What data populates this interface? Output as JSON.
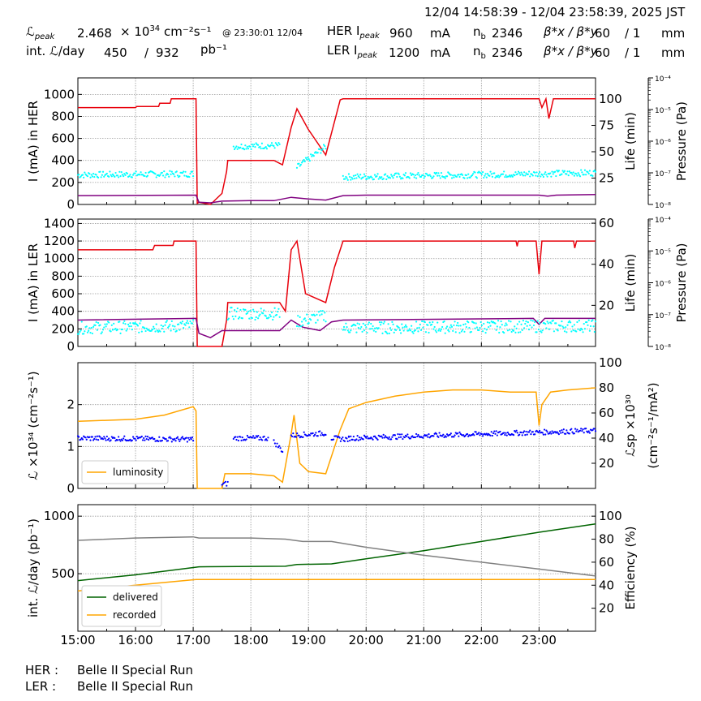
{
  "header": {
    "date_range": "12/04 14:58:39 - 12/04 23:58:39, 2025 JST",
    "lpeak_label": "ℒ",
    "lpeak_sub": "peak",
    "lpeak_value": "2.468",
    "lpeak_exp_label": "× 10",
    "lpeak_exp": "34",
    "lpeak_unit": "cm⁻²s⁻¹",
    "lpeak_time": "@ 23:30:01 12/04",
    "intl_label": "int. ℒ/day",
    "intl_recorded": "450",
    "intl_sep": "/",
    "intl_delivered": "932",
    "intl_unit": "pb⁻¹",
    "her_label": "HER I",
    "her_sub": "peak",
    "her_value": "960",
    "her_unit": "mA",
    "her_nb_label": "n",
    "her_nb_sub": "b",
    "her_nb": "2346",
    "beta_label": "β*x / β*y",
    "her_betax": "60",
    "her_betay": "/ 1",
    "beta_unit": "mm",
    "ler_label": "LER I",
    "ler_sub": "peak",
    "ler_value": "1200",
    "ler_unit": "mA",
    "ler_nb_label": "n",
    "ler_nb_sub": "b",
    "ler_nb": "2346",
    "ler_betax": "60",
    "ler_betay": "/ 1"
  },
  "footer": {
    "her_label": "HER :",
    "her_value": "Belle II Special Run",
    "ler_label": "LER :",
    "ler_value": "Belle II Special Run"
  },
  "colors": {
    "current": "#e8000b",
    "life": "#00ffff",
    "pressure": "#800080",
    "luminosity": "#ffa500",
    "specific": "#0000ff",
    "delivered": "#006400",
    "recorded": "#ffa500",
    "efficiency": "#808080"
  },
  "chart_data": [
    {
      "type": "line",
      "ylabel": "I (mA) in HER",
      "ylim": [
        0,
        1150
      ],
      "yticks": [
        0,
        200,
        400,
        600,
        800,
        1000
      ],
      "right_label": "Life (min)",
      "right_lim": [
        0,
        120
      ],
      "right_ticks": [
        25,
        50,
        75,
        100
      ],
      "pressure_label": "Pressure (Pa)",
      "pressure_ticks": [
        "10⁻⁸",
        "10⁻⁷",
        "10⁻⁶",
        "10⁻⁵",
        "10⁻⁴"
      ],
      "xlim": [
        15.0,
        23.98
      ],
      "series": [
        {
          "key": "current",
          "x": [
            15.0,
            16.0,
            16.02,
            16.4,
            16.42,
            16.6,
            16.62,
            17.05,
            17.07,
            17.1,
            17.3,
            17.5,
            17.58,
            17.6,
            18.4,
            18.55,
            18.7,
            18.8,
            19.0,
            19.3,
            19.55,
            19.6,
            23.0,
            23.05,
            23.12,
            23.17,
            23.25,
            23.3,
            23.98
          ],
          "y": [
            880,
            880,
            890,
            890,
            920,
            920,
            960,
            960,
            10,
            20,
            0,
            100,
            300,
            400,
            400,
            360,
            700,
            870,
            680,
            450,
            950,
            960,
            960,
            880,
            960,
            780,
            960,
            960,
            960
          ]
        },
        {
          "key": "pressure",
          "x": [
            15.0,
            17.05,
            17.1,
            17.3,
            17.5,
            18.0,
            18.4,
            18.7,
            19.0,
            19.3,
            19.6,
            20.0,
            23.0,
            23.15,
            23.3,
            23.98
          ],
          "y": [
            80,
            85,
            20,
            15,
            30,
            35,
            35,
            65,
            50,
            40,
            80,
            85,
            85,
            75,
            85,
            90
          ]
        },
        {
          "key": "life",
          "type": "scatter",
          "segments": [
            {
              "x": [
                15.0,
                17.0
              ],
              "y": [
                28,
                29
              ]
            },
            {
              "x": [
                17.7,
                18.5
              ],
              "y": [
                55,
                56
              ]
            },
            {
              "x": [
                18.8,
                19.3
              ],
              "y": [
                35,
                55
              ]
            },
            {
              "x": [
                19.6,
                23.98
              ],
              "y": [
                26,
                30
              ]
            }
          ]
        }
      ]
    },
    {
      "type": "line",
      "ylabel": "I (mA) in LER",
      "ylim": [
        0,
        1450
      ],
      "yticks": [
        0,
        200,
        400,
        600,
        800,
        1000,
        1200,
        1400
      ],
      "right_label": "Life (min)",
      "right_lim": [
        0,
        62
      ],
      "right_ticks": [
        20,
        40,
        60
      ],
      "pressure_label": "Pressure (Pa)",
      "pressure_ticks": [
        "10⁻⁸",
        "10⁻⁷",
        "10⁻⁶",
        "10⁻⁵",
        "10⁻⁴"
      ],
      "xlim": [
        15.0,
        23.98
      ],
      "series": [
        {
          "key": "current",
          "x": [
            15.0,
            16.3,
            16.33,
            16.65,
            16.67,
            17.05,
            17.07,
            17.1,
            17.5,
            17.58,
            17.6,
            18.5,
            18.6,
            18.7,
            18.8,
            18.95,
            19.3,
            19.45,
            19.6,
            22.6,
            22.62,
            22.64,
            22.95,
            23.0,
            23.05,
            23.6,
            23.62,
            23.65,
            23.98
          ],
          "y": [
            1100,
            1100,
            1150,
            1150,
            1200,
            1200,
            0,
            0,
            0,
            300,
            500,
            500,
            400,
            1100,
            1200,
            600,
            500,
            900,
            1200,
            1200,
            1140,
            1200,
            1200,
            820,
            1200,
            1200,
            1120,
            1200,
            1200
          ]
        },
        {
          "key": "pressure",
          "x": [
            15.0,
            17.05,
            17.1,
            17.3,
            17.5,
            18.0,
            18.5,
            18.7,
            18.9,
            19.2,
            19.4,
            19.6,
            22.9,
            23.0,
            23.1,
            23.98
          ],
          "y": [
            300,
            320,
            150,
            100,
            180,
            180,
            180,
            300,
            220,
            180,
            280,
            300,
            320,
            250,
            320,
            320
          ]
        },
        {
          "key": "life",
          "type": "scatter",
          "segments": [
            {
              "x": [
                15.0,
                17.0
              ],
              "y": [
                9,
                10
              ]
            },
            {
              "x": [
                17.6,
                18.5
              ],
              "y": [
                16,
                16
              ]
            },
            {
              "x": [
                18.8,
                19.3
              ],
              "y": [
                12,
                15
              ]
            },
            {
              "x": [
                19.6,
                23.98
              ],
              "y": [
                9,
                10
              ]
            }
          ]
        }
      ]
    },
    {
      "type": "line",
      "ylabel": "ℒ ×10³⁴ (cm⁻²s⁻¹)",
      "ylim": [
        0,
        3.0
      ],
      "yticks": [
        0,
        1,
        2
      ],
      "right_label": "ℒsp ×10³⁰",
      "right_label2": "(cm⁻²s⁻¹/mA²)",
      "right_lim": [
        0,
        100
      ],
      "right_ticks": [
        20,
        40,
        60,
        80,
        100
      ],
      "legend": [
        "luminosity"
      ],
      "xlim": [
        15.0,
        23.98
      ],
      "series": [
        {
          "key": "luminosity",
          "name": "luminosity",
          "x": [
            15.0,
            16.0,
            16.5,
            17.0,
            17.05,
            17.07,
            17.5,
            17.55,
            17.7,
            18.0,
            18.4,
            18.55,
            18.7,
            18.75,
            18.85,
            19.0,
            19.3,
            19.55,
            19.7,
            20.0,
            20.5,
            21.0,
            21.5,
            22.0,
            22.5,
            22.95,
            23.0,
            23.05,
            23.2,
            23.5,
            23.98
          ],
          "y": [
            1.6,
            1.65,
            1.75,
            1.95,
            1.85,
            0,
            0,
            0.35,
            0.35,
            0.35,
            0.3,
            0.15,
            1.3,
            1.75,
            0.6,
            0.4,
            0.35,
            1.4,
            1.9,
            2.05,
            2.2,
            2.3,
            2.35,
            2.35,
            2.3,
            2.3,
            1.5,
            2.0,
            2.3,
            2.35,
            2.4
          ]
        },
        {
          "key": "specific",
          "type": "scatter",
          "segments": [
            {
              "x": [
                15.0,
                17.0
              ],
              "y": [
                40,
                39
              ]
            },
            {
              "x": [
                17.5,
                17.6
              ],
              "y": [
                3,
                4
              ]
            },
            {
              "x": [
                17.7,
                18.3
              ],
              "y": [
                40,
                40
              ]
            },
            {
              "x": [
                18.4,
                18.55
              ],
              "y": [
                37,
                30
              ]
            },
            {
              "x": [
                18.7,
                19.3
              ],
              "y": [
                42,
                44
              ]
            },
            {
              "x": [
                19.4,
                19.7
              ],
              "y": [
                40,
                39
              ]
            },
            {
              "x": [
                19.7,
                23.98
              ],
              "y": [
                40,
                46
              ]
            }
          ]
        }
      ]
    },
    {
      "type": "line",
      "ylabel": "int. ℒ/day (pb⁻¹)",
      "ylim": [
        0,
        1100
      ],
      "yticks": [
        500,
        1000
      ],
      "right_label": "Efficiency (%)",
      "right_lim": [
        0,
        110
      ],
      "right_ticks": [
        20,
        40,
        60,
        80,
        100
      ],
      "legend": [
        "delivered",
        "recorded"
      ],
      "xticks": [
        "15:00",
        "16:00",
        "17:00",
        "18:00",
        "19:00",
        "20:00",
        "21:00",
        "22:00",
        "23:00"
      ],
      "xlim": [
        15.0,
        23.98
      ],
      "series": [
        {
          "key": "delivered",
          "name": "delivered",
          "x": [
            15.0,
            16.0,
            17.1,
            18.6,
            18.8,
            19.4,
            20.0,
            21.0,
            22.0,
            23.0,
            23.98
          ],
          "y": [
            440,
            490,
            560,
            565,
            580,
            585,
            630,
            700,
            780,
            860,
            932
          ]
        },
        {
          "key": "recorded",
          "name": "recorded",
          "x": [
            15.0,
            16.0,
            17.05,
            18.0,
            19.0,
            20.0,
            21.0,
            22.0,
            23.0,
            23.98
          ],
          "y": [
            350,
            400,
            450,
            450,
            450,
            450,
            450,
            450,
            450,
            450
          ]
        },
        {
          "key": "efficiency",
          "x": [
            15.0,
            16.0,
            17.0,
            17.1,
            18.0,
            18.6,
            18.9,
            19.4,
            20.0,
            21.0,
            22.0,
            23.0,
            23.98
          ],
          "y": [
            79,
            81,
            82,
            81,
            81,
            80,
            78,
            78,
            73,
            66,
            60,
            54,
            48
          ]
        }
      ]
    }
  ]
}
